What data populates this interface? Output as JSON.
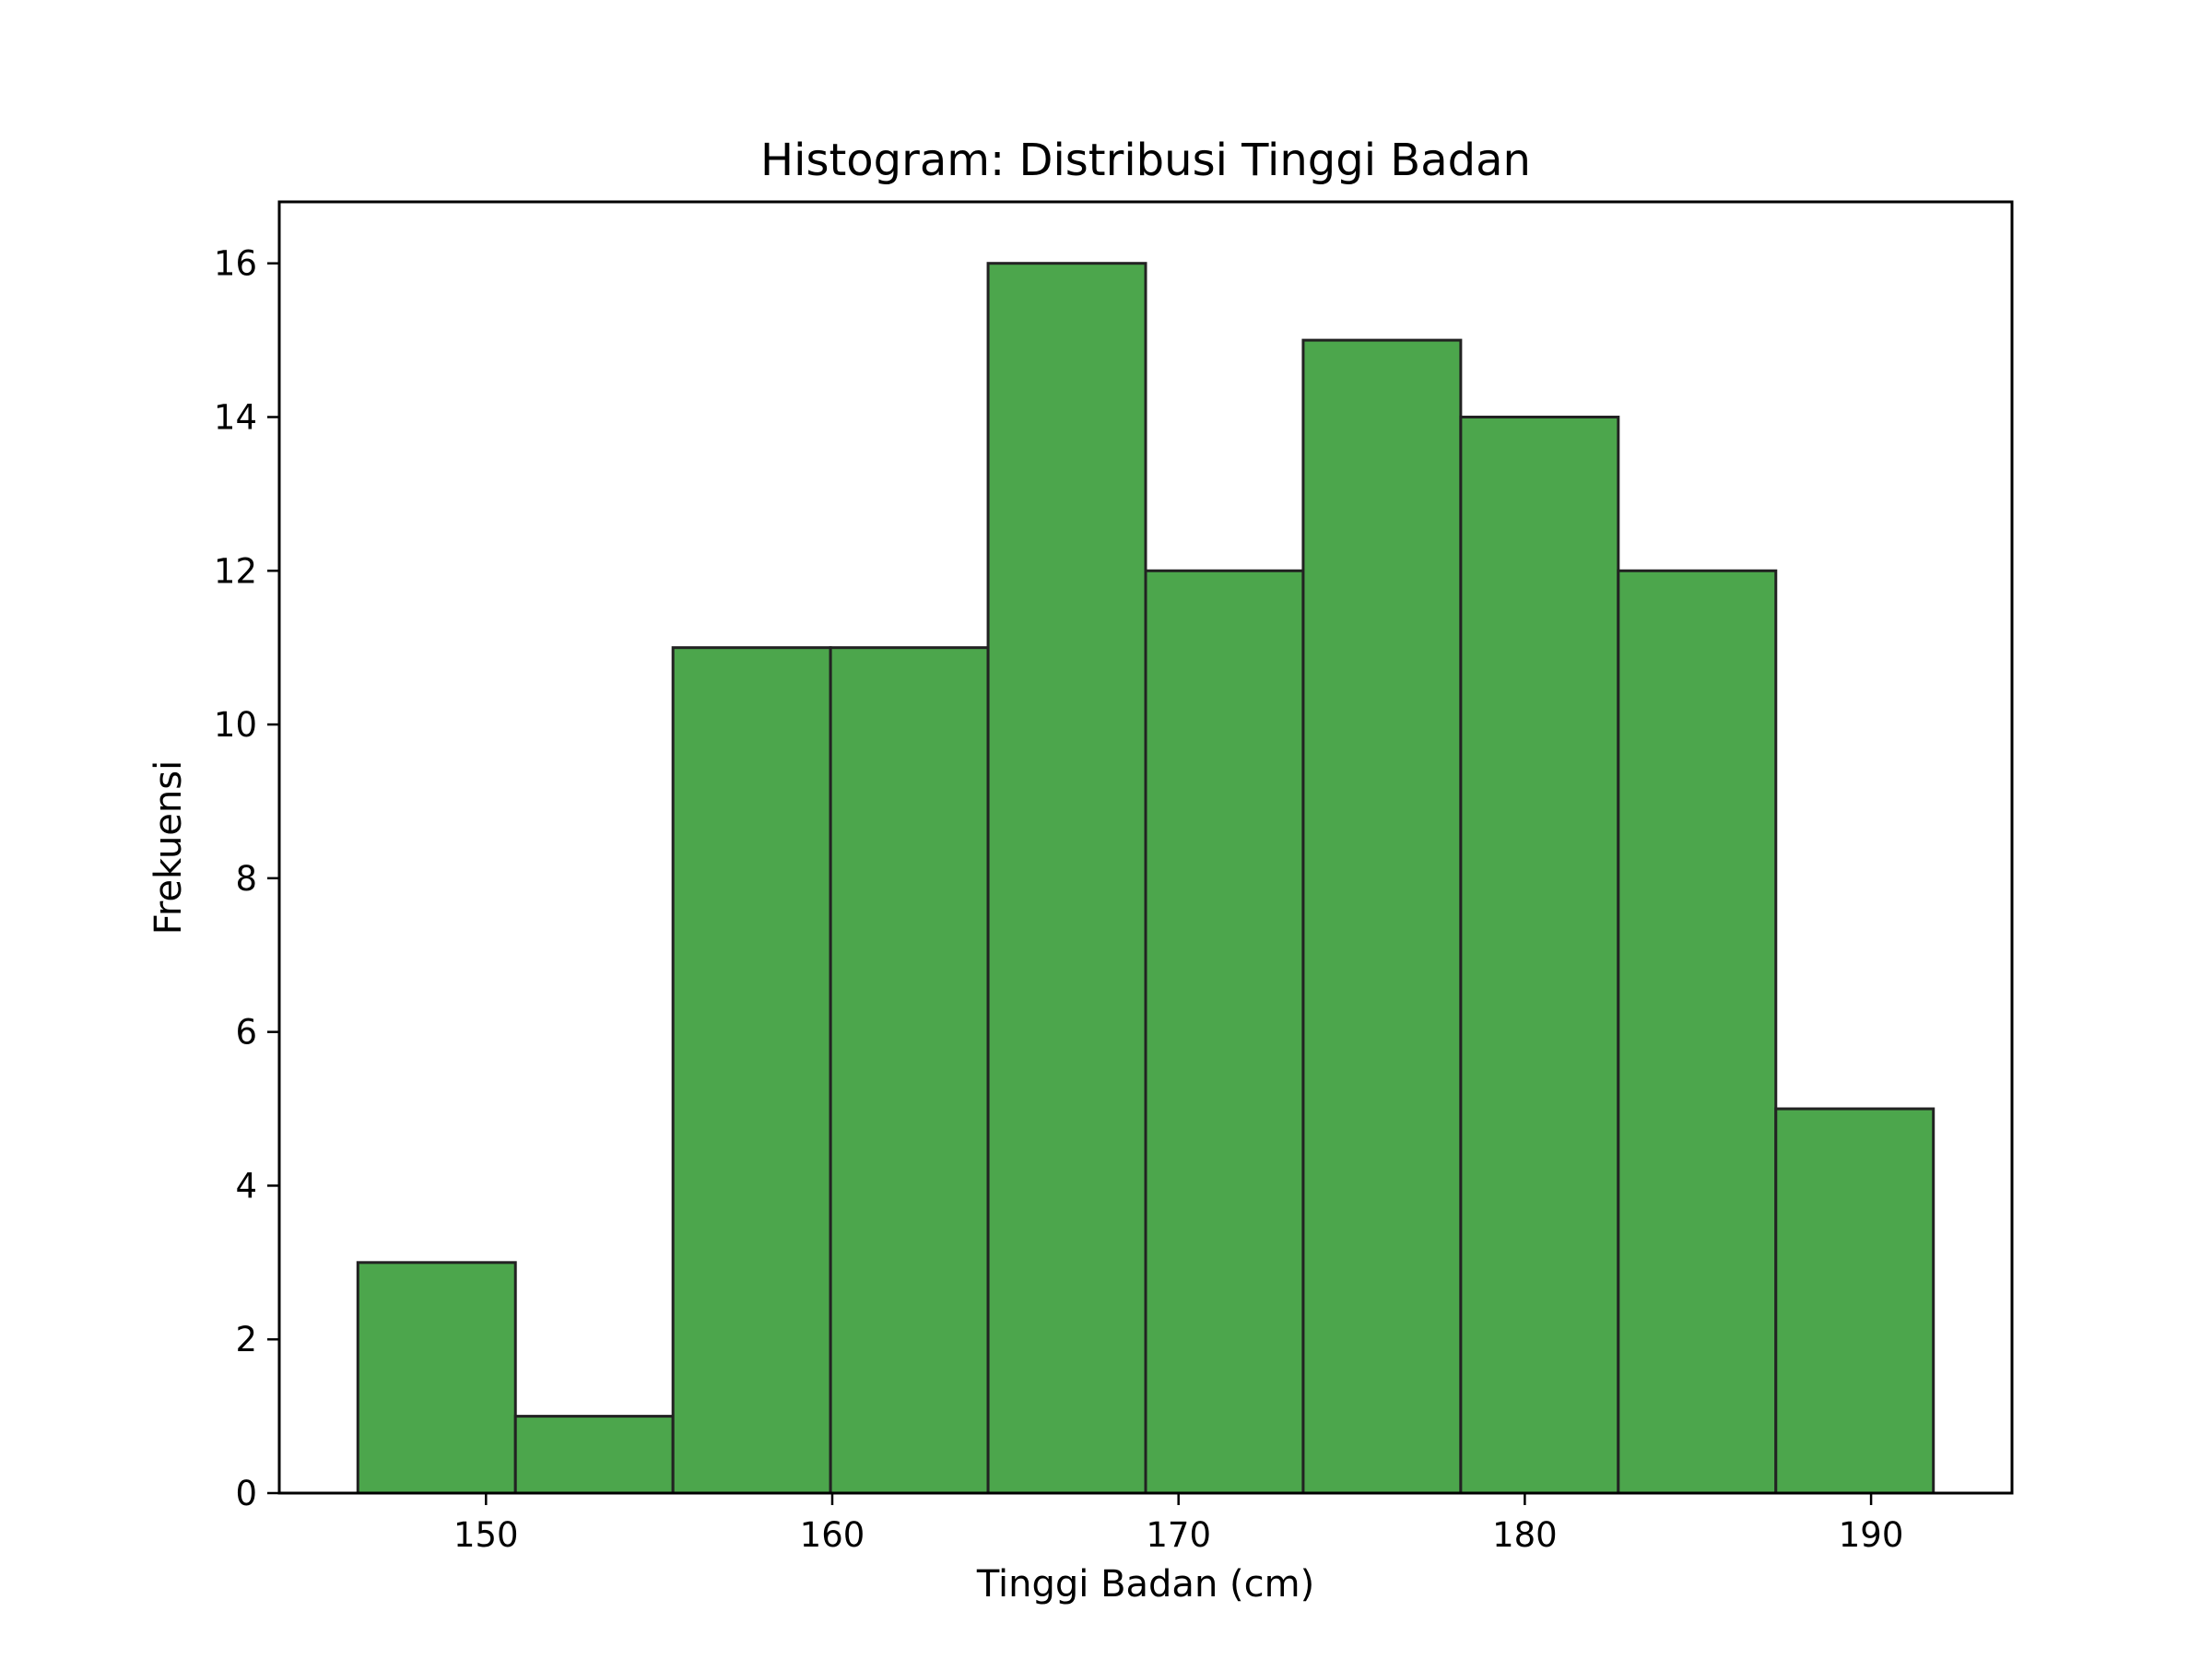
{
  "chart_data": {
    "type": "bar",
    "title": "Histogram: Distribusi Tinggi Badan",
    "xlabel": "Tinggi Badan (cm)",
    "ylabel": "Frekuensi",
    "bins": [
      {
        "start": 146.3,
        "end": 150.85,
        "count": 3
      },
      {
        "start": 150.85,
        "end": 155.4,
        "count": 1
      },
      {
        "start": 155.4,
        "end": 159.95,
        "count": 11
      },
      {
        "start": 159.95,
        "end": 164.5,
        "count": 11
      },
      {
        "start": 164.5,
        "end": 169.05,
        "count": 16
      },
      {
        "start": 169.05,
        "end": 173.6,
        "count": 12
      },
      {
        "start": 173.6,
        "end": 178.15,
        "count": 15
      },
      {
        "start": 178.15,
        "end": 182.7,
        "count": 14
      },
      {
        "start": 182.7,
        "end": 187.25,
        "count": 12
      },
      {
        "start": 187.25,
        "end": 191.8,
        "count": 5
      }
    ],
    "xlim": [
      144.03,
      194.07
    ],
    "ylim": [
      0,
      16.8
    ],
    "xticks": [
      150,
      160,
      170,
      180,
      190
    ],
    "yticks": [
      0,
      2,
      4,
      6,
      8,
      10,
      12,
      14,
      16
    ],
    "bar_color": "#4ca64c",
    "edge_color": "#222222",
    "grid": false,
    "legend": "none"
  }
}
